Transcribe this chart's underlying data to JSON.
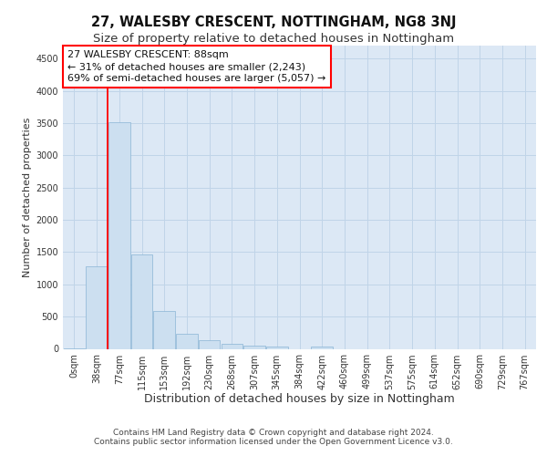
{
  "title_main": "27, WALESBY CRESCENT, NOTTINGHAM, NG8 3NJ",
  "title_sub": "Size of property relative to detached houses in Nottingham",
  "xlabel": "Distribution of detached houses by size in Nottingham",
  "ylabel": "Number of detached properties",
  "categories": [
    "0sqm",
    "38sqm",
    "77sqm",
    "115sqm",
    "153sqm",
    "192sqm",
    "230sqm",
    "268sqm",
    "307sqm",
    "345sqm",
    "384sqm",
    "422sqm",
    "460sqm",
    "499sqm",
    "537sqm",
    "575sqm",
    "614sqm",
    "652sqm",
    "690sqm",
    "729sqm",
    "767sqm"
  ],
  "values": [
    5,
    1280,
    3510,
    1460,
    580,
    240,
    130,
    75,
    50,
    35,
    0,
    30,
    0,
    0,
    0,
    0,
    0,
    0,
    0,
    0,
    0
  ],
  "bar_color": "#ccdff0",
  "bar_edge_color": "#8ab4d4",
  "annotation_text": "27 WALESBY CRESCENT: 88sqm\n← 31% of detached houses are smaller (2,243)\n69% of semi-detached houses are larger (5,057) →",
  "ylim_max": 4700,
  "yticks": [
    0,
    500,
    1000,
    1500,
    2000,
    2500,
    3000,
    3500,
    4000,
    4500
  ],
  "plot_bg_color": "#dce8f5",
  "grid_color": "#c0d4e8",
  "red_line_x": 1.5,
  "footer_line1": "Contains HM Land Registry data © Crown copyright and database right 2024.",
  "footer_line2": "Contains public sector information licensed under the Open Government Licence v3.0.",
  "title_main_fontsize": 10.5,
  "title_sub_fontsize": 9.5,
  "xlabel_fontsize": 9,
  "ylabel_fontsize": 8,
  "tick_fontsize": 7,
  "annotation_fontsize": 8,
  "footer_fontsize": 6.5
}
